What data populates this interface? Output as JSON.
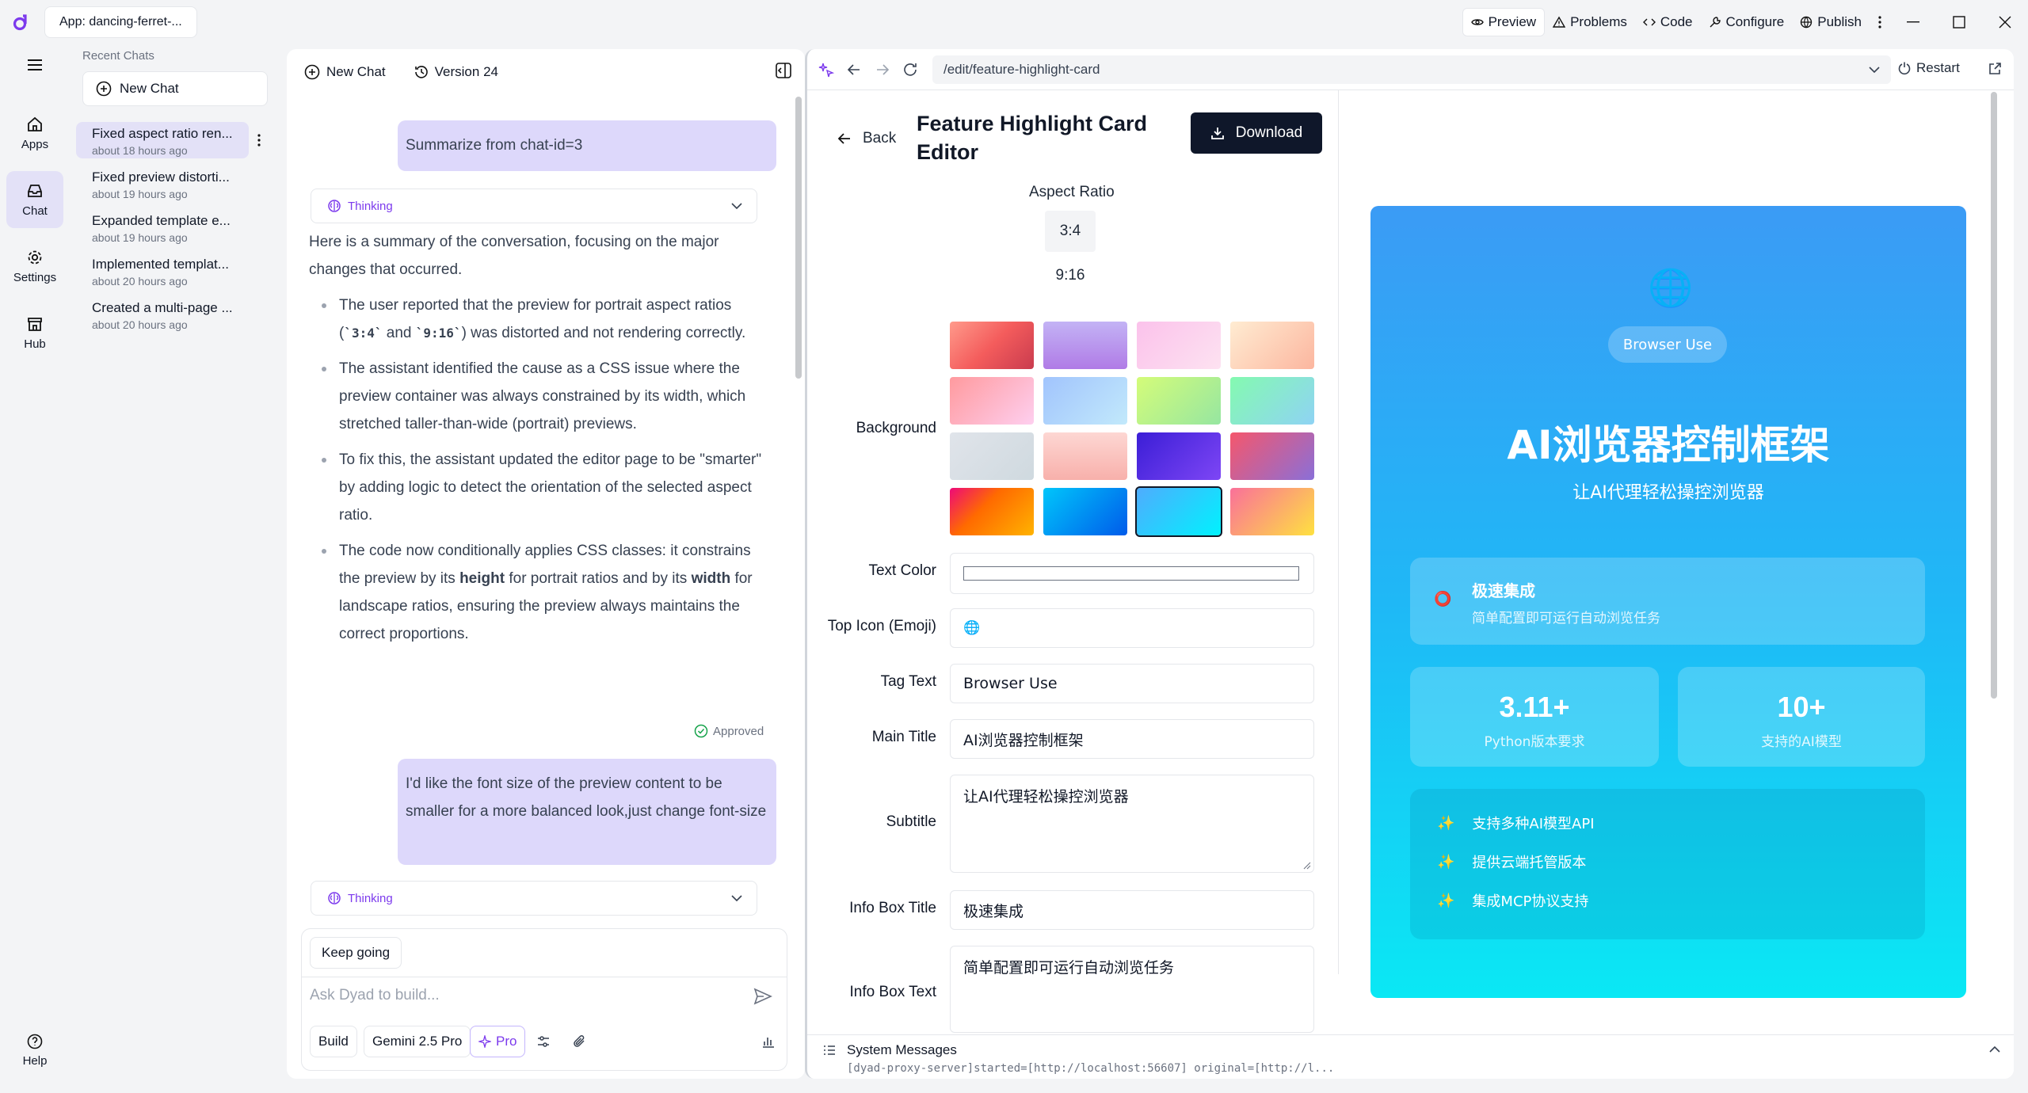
{
  "titlebar": {
    "app_label": "App: dancing-ferret-...",
    "buttons": [
      "Preview",
      "Problems",
      "Code",
      "Configure",
      "Publish"
    ]
  },
  "rail": {
    "items": [
      {
        "label": "Apps",
        "icon": "home-icon"
      },
      {
        "label": "Chat",
        "icon": "inbox-icon"
      },
      {
        "label": "Settings",
        "icon": "gear-icon"
      },
      {
        "label": "Hub",
        "icon": "store-icon"
      }
    ],
    "help": "Help"
  },
  "chatlist": {
    "heading": "Recent Chats",
    "new_chat": "New Chat",
    "items": [
      {
        "title": "Fixed aspect ratio ren...",
        "time": "about 18 hours ago"
      },
      {
        "title": "Fixed preview distorti...",
        "time": "about 19 hours ago"
      },
      {
        "title": "Expanded template e...",
        "time": "about 19 hours ago"
      },
      {
        "title": "Implemented templat...",
        "time": "about 20 hours ago"
      },
      {
        "title": "Created a multi-page ...",
        "time": "about 20 hours ago"
      }
    ]
  },
  "chat": {
    "new_chat": "New Chat",
    "version": "Version 24",
    "msg1": "Summarize from chat-id=3",
    "thinking": "Thinking",
    "summary_intro": "Here is a summary of the conversation, focusing on the major changes that occurred.",
    "b1_pre": "The user reported that the preview for portrait aspect ratios (",
    "b1_code1": "`3:4`",
    "b1_mid": " and ",
    "b1_code2": "`9:16`",
    "b1_post": ") was distorted and not rendering correctly.",
    "b2": "The assistant identified the cause as a CSS issue where the preview container was always constrained by its width, which stretched taller-than-wide (portrait) previews.",
    "b3": "To fix this, the assistant updated the editor page to be \"smarter\" by adding logic to detect the orientation of the selected aspect ratio.",
    "b4_pre": "The code now conditionally applies CSS classes: it constrains the preview by its ",
    "b4_bold1": "height",
    "b4_mid": " for portrait ratios and by its ",
    "b4_bold2": "width",
    "b4_post": " for landscape ratios, ensuring the preview always maintains the correct proportions.",
    "approved": "Approved",
    "msg2": "I'd like the font size of the preview content to be smaller for a more balanced look,just change font-size",
    "thinking2": "Thinking",
    "keep_going": "Keep going",
    "placeholder": "Ask Dyad to build...",
    "chips": {
      "build": "Build",
      "model": "Gemini 2.5 Pro",
      "pro": "Pro"
    }
  },
  "preview": {
    "url": "/edit/feature-highlight-card",
    "restart": "Restart",
    "back": "Back",
    "title": "Feature Highlight Card Editor",
    "download": "Download",
    "aspect_label": "Aspect Ratio",
    "aspect_options": [
      "3:4",
      "9:16"
    ],
    "aspect_selected": "3:4",
    "background_label": "Background",
    "swatches": [
      "linear-gradient(135deg,#ff9a8b,#f45c5c 50%,#c93b4e)",
      "linear-gradient(180deg,#c3b3f5,#b07be6)",
      "linear-gradient(135deg,#fbc2eb,#fde2f1)",
      "linear-gradient(135deg,#ffecd2,#fcb69f)",
      "linear-gradient(135deg,#ff9a9e,#fecfef)",
      "linear-gradient(135deg,#a1c4fd,#c2e9fb)",
      "linear-gradient(135deg,#d4fc79,#96e6a1)",
      "linear-gradient(135deg,#84fab0,#8fd3f4)",
      "linear-gradient(135deg,#e0e4ea,#cfd9df)",
      "linear-gradient(180deg,#fdd7d3,#f8b0ab)",
      "linear-gradient(135deg,#3b1ed6,#7e46f5)",
      "linear-gradient(135deg,#f5576c,#8a6fd8)",
      "linear-gradient(135deg,#ff6a00,#ee0979 0%,#ff6a00 40%,#ffb300)",
      "linear-gradient(135deg,#00c6fb,#005bea)",
      "linear-gradient(135deg,#4facfe,#00f2fe)",
      "linear-gradient(135deg,#fa709a,#fee140)"
    ],
    "selected_swatch": 14,
    "text_color_label": "Text Color",
    "top_icon_label": "Top Icon (Emoji)",
    "top_icon_value": "🌐",
    "tag_label": "Tag Text",
    "tag_value": "Browser Use",
    "main_title_label": "Main Title",
    "main_title_value": "AI浏览器控制框架",
    "subtitle_label": "Subtitle",
    "subtitle_value": "让AI代理轻松操控浏览器",
    "info_title_label": "Info Box Title",
    "info_title_value": "极速集成",
    "info_text_label": "Info Box Text",
    "info_text_value": "简单配置即可运行自动浏览任务",
    "card": {
      "icon": "🌐",
      "tag": "Browser Use",
      "title": "AI浏览器控制框架",
      "subtitle": "让AI代理轻松操控浏览器",
      "info_icon": "⭕",
      "info_title": "极速集成",
      "info_text": "简单配置即可运行自动浏览任务",
      "stat1_value": "3.11+",
      "stat1_label": "Python版本要求",
      "stat2_value": "10+",
      "stat2_label": "支持的AI模型",
      "feature_icon": "✨",
      "features": [
        "支持多种AI模型API",
        "提供云端托管版本",
        "集成MCP协议支持"
      ]
    },
    "system_title": "System Messages",
    "system_line": "[dyad-proxy-server]started=[http://localhost:56607] original=[http://l..."
  }
}
